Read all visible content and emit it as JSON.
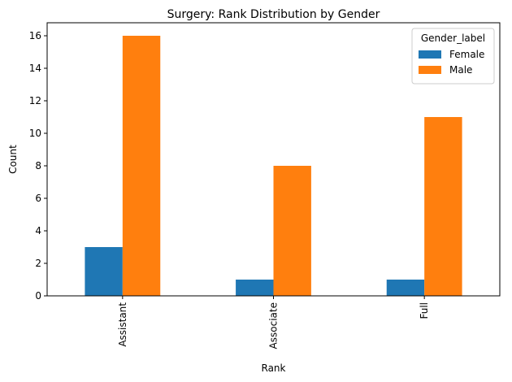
{
  "chart_data": {
    "type": "bar",
    "title": "Surgery: Rank Distribution by Gender",
    "xlabel": "Rank",
    "ylabel": "Count",
    "categories": [
      "Assistant",
      "Associate",
      "Full"
    ],
    "series": [
      {
        "name": "Female",
        "values": [
          3,
          1,
          1
        ],
        "color": "#1f77b4"
      },
      {
        "name": "Male",
        "values": [
          16,
          8,
          11
        ],
        "color": "#ff7f0e"
      }
    ],
    "ylim": [
      0,
      16.8
    ],
    "yticks": [
      0,
      2,
      4,
      6,
      8,
      10,
      12,
      14,
      16
    ],
    "grid": false,
    "legend": {
      "title": "Gender_label",
      "placement": "top-right"
    }
  }
}
